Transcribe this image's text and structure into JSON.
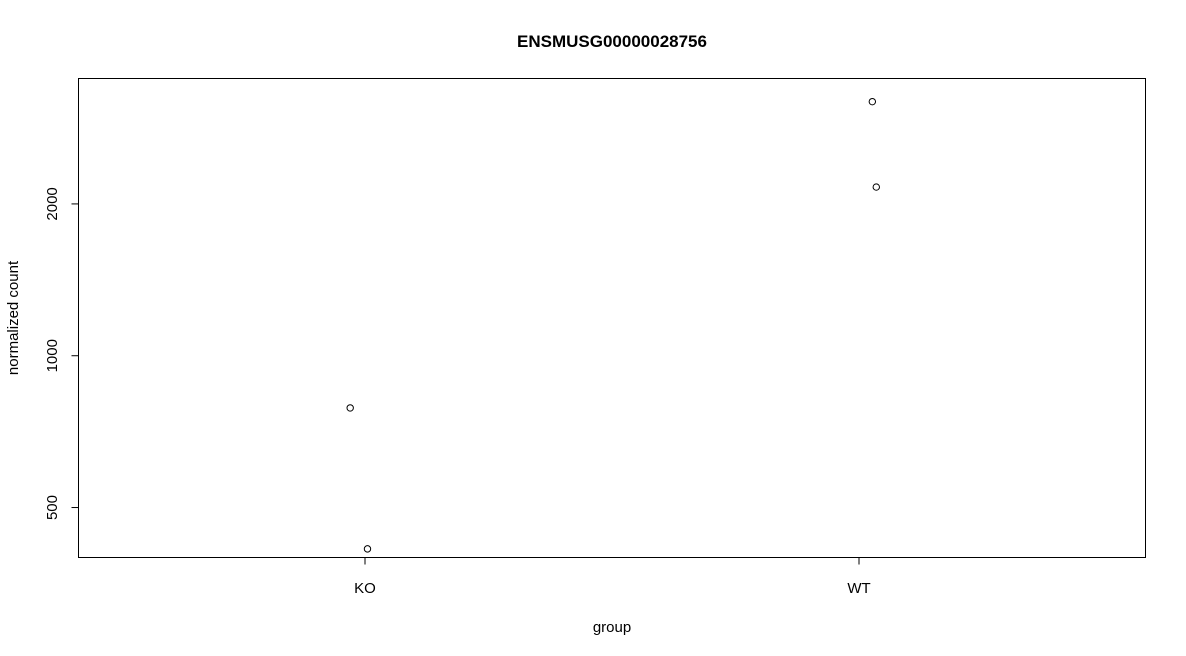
{
  "chart_data": {
    "type": "scatter",
    "title": "ENSMUSG00000028756",
    "xlabel": "group",
    "ylabel": "normalized count",
    "y_scale": "log",
    "ylim": [
      398,
      3546
    ],
    "grid": false,
    "categories": [
      "KO",
      "WT"
    ],
    "yticks": [
      500,
      1000,
      2000
    ],
    "ytick_labels": [
      "500",
      "1000",
      "2000"
    ],
    "points": [
      {
        "group": "KO",
        "y": 788
      },
      {
        "group": "KO",
        "y": 414
      },
      {
        "group": "WT",
        "y": 3190
      },
      {
        "group": "WT",
        "y": 2160
      }
    ]
  }
}
